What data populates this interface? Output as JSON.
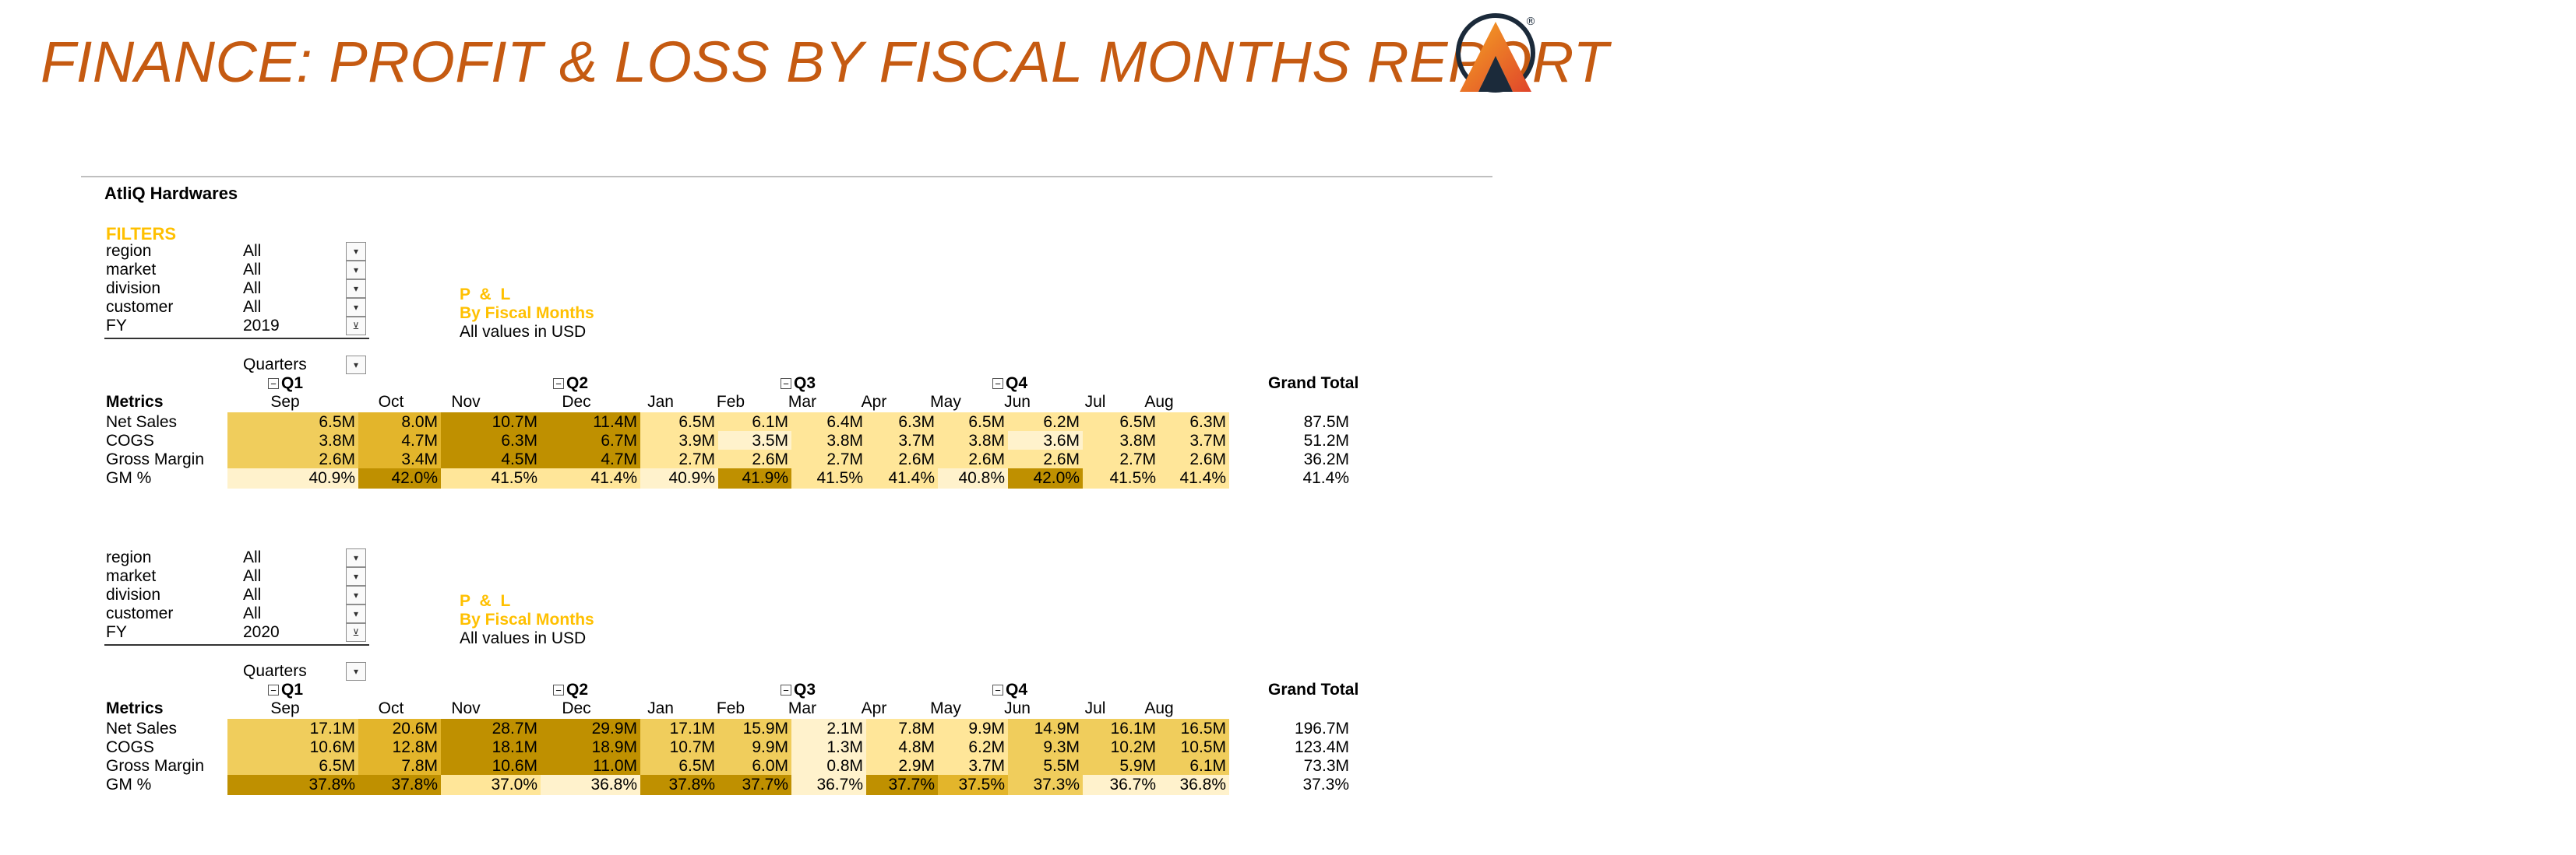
{
  "title": "FINANCE: PROFIT & LOSS BY FISCAL MONTHS REPORT",
  "brand": {
    "accent": "#c55a11",
    "logo_gradient": [
      "#f5a623",
      "#e0452b"
    ],
    "logo_dark": "#1b2a3a",
    "logo_mark": "®"
  },
  "company": "AtliQ Hardwares",
  "filters_heading": "FILTERS",
  "colors": {
    "heat_light": "#fff2cc",
    "heat_mid": "#ffe699",
    "heat_deep": "#f0cd5c",
    "heat_dark": "#bf9000",
    "filter_heading": "#ffc000"
  },
  "reports": [
    {
      "filters": [
        {
          "label": "region",
          "value": "All"
        },
        {
          "label": "market",
          "value": "All"
        },
        {
          "label": "division",
          "value": "All"
        },
        {
          "label": "customer",
          "value": "All"
        },
        {
          "label": "FY",
          "value": "2019"
        }
      ],
      "pl_title": "P & L",
      "pl_subtitle": "By Fiscal Months",
      "pl_note": "All values in USD",
      "quarters_label": "Quarters",
      "quarters": [
        "Q1",
        "Q2",
        "Q3",
        "Q4"
      ],
      "grand_total_label": "Grand Total",
      "metrics_label": "Metrics",
      "months": [
        "Sep",
        "Oct",
        "Nov",
        "Dec",
        "Jan",
        "Feb",
        "Mar",
        "Apr",
        "May",
        "Jun",
        "Jul",
        "Aug"
      ],
      "rows": [
        {
          "label": "Net Sales",
          "values": [
            "6.5M",
            "8.0M",
            "10.7M",
            "11.4M",
            "6.5M",
            "6.1M",
            "6.4M",
            "6.3M",
            "6.5M",
            "6.2M",
            "6.5M",
            "6.3M"
          ],
          "total": "87.5M",
          "heat": [
            2,
            3,
            4,
            4,
            1,
            1,
            1,
            1,
            1,
            1,
            1,
            1
          ]
        },
        {
          "label": "COGS",
          "values": [
            "3.8M",
            "4.7M",
            "6.3M",
            "6.7M",
            "3.9M",
            "3.5M",
            "3.8M",
            "3.7M",
            "3.8M",
            "3.6M",
            "3.8M",
            "3.7M"
          ],
          "total": "51.2M",
          "heat": [
            2,
            3,
            4,
            4,
            1,
            0,
            1,
            1,
            1,
            0,
            1,
            1
          ]
        },
        {
          "label": "Gross Margin",
          "values": [
            "2.6M",
            "3.4M",
            "4.5M",
            "4.7M",
            "2.7M",
            "2.6M",
            "2.7M",
            "2.6M",
            "2.6M",
            "2.6M",
            "2.7M",
            "2.6M"
          ],
          "total": "36.2M",
          "heat": [
            2,
            3,
            4,
            4,
            1,
            1,
            1,
            1,
            1,
            1,
            1,
            1
          ]
        },
        {
          "label": "GM %",
          "values": [
            "40.9%",
            "42.0%",
            "41.5%",
            "41.4%",
            "40.9%",
            "41.9%",
            "41.5%",
            "41.4%",
            "40.8%",
            "42.0%",
            "41.5%",
            "41.4%"
          ],
          "total": "41.4%",
          "heat": [
            0,
            4,
            1,
            1,
            0,
            4,
            1,
            1,
            0,
            4,
            1,
            1
          ]
        }
      ]
    },
    {
      "filters": [
        {
          "label": "region",
          "value": "All"
        },
        {
          "label": "market",
          "value": "All"
        },
        {
          "label": "division",
          "value": "All"
        },
        {
          "label": "customer",
          "value": "All"
        },
        {
          "label": "FY",
          "value": "2020"
        }
      ],
      "pl_title": "P & L",
      "pl_subtitle": "By Fiscal Months",
      "pl_note": "All values in USD",
      "quarters_label": "Quarters",
      "quarters": [
        "Q1",
        "Q2",
        "Q3",
        "Q4"
      ],
      "grand_total_label": "Grand Total",
      "metrics_label": "Metrics",
      "months": [
        "Sep",
        "Oct",
        "Nov",
        "Dec",
        "Jan",
        "Feb",
        "Mar",
        "Apr",
        "May",
        "Jun",
        "Jul",
        "Aug"
      ],
      "rows": [
        {
          "label": "Net Sales",
          "values": [
            "17.1M",
            "20.6M",
            "28.7M",
            "29.9M",
            "17.1M",
            "15.9M",
            "2.1M",
            "7.8M",
            "9.9M",
            "14.9M",
            "16.1M",
            "16.5M"
          ],
          "total": "196.7M",
          "heat": [
            2,
            3,
            4,
            4,
            2,
            2,
            0,
            1,
            1,
            2,
            2,
            2
          ]
        },
        {
          "label": "COGS",
          "values": [
            "10.6M",
            "12.8M",
            "18.1M",
            "18.9M",
            "10.7M",
            "9.9M",
            "1.3M",
            "4.8M",
            "6.2M",
            "9.3M",
            "10.2M",
            "10.5M"
          ],
          "total": "123.4M",
          "heat": [
            2,
            3,
            4,
            4,
            2,
            2,
            0,
            1,
            1,
            2,
            2,
            2
          ]
        },
        {
          "label": "Gross Margin",
          "values": [
            "6.5M",
            "7.8M",
            "10.6M",
            "11.0M",
            "6.5M",
            "6.0M",
            "0.8M",
            "2.9M",
            "3.7M",
            "5.5M",
            "5.9M",
            "6.1M"
          ],
          "total": "73.3M",
          "heat": [
            2,
            3,
            4,
            4,
            2,
            2,
            0,
            1,
            1,
            2,
            2,
            2
          ]
        },
        {
          "label": "GM %",
          "values": [
            "37.8%",
            "37.8%",
            "37.0%",
            "36.8%",
            "37.8%",
            "37.7%",
            "36.7%",
            "37.7%",
            "37.5%",
            "37.3%",
            "36.7%",
            "36.8%"
          ],
          "total": "37.3%",
          "heat": [
            4,
            4,
            1,
            0,
            4,
            4,
            0,
            4,
            3,
            2,
            0,
            0
          ]
        }
      ]
    }
  ]
}
